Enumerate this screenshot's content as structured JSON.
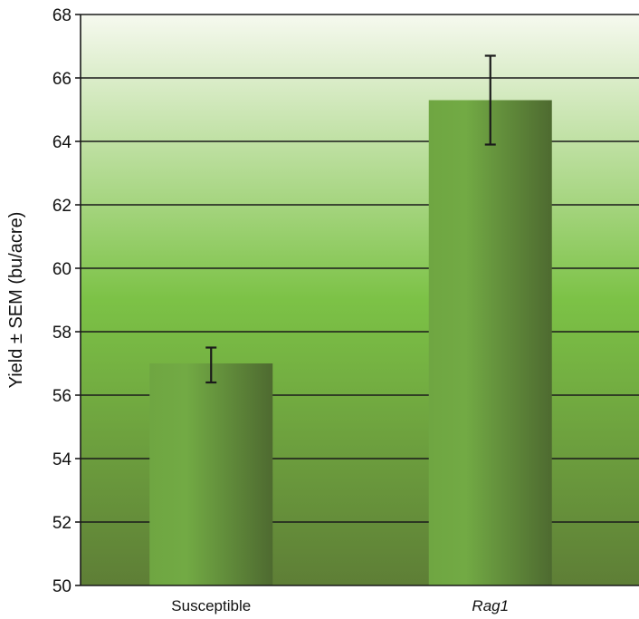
{
  "chart_data": {
    "type": "bar",
    "title": "",
    "xlabel": "",
    "ylabel": "Yield ± SEM (bu/acre)",
    "ylim": [
      50,
      68
    ],
    "yticks": [
      50,
      52,
      54,
      56,
      58,
      60,
      62,
      64,
      66,
      68
    ],
    "categories": [
      {
        "label": "Susceptible",
        "italic": false
      },
      {
        "label": "Rag1",
        "italic": true
      }
    ],
    "values": [
      57.0,
      65.3
    ],
    "errors": [
      {
        "low": 56.4,
        "high": 57.5
      },
      {
        "low": 63.9,
        "high": 66.7
      }
    ],
    "grid": true,
    "legend": "none"
  },
  "colors": {
    "background_top": "#f6f9ef",
    "background_mid": "#7cc246",
    "background_bottom": "#5e7e36",
    "bar_left": "#6fa642",
    "bar_right": "#4e6a30",
    "gridline": "#1a1a1a",
    "error_bar": "#1a1a1a"
  }
}
